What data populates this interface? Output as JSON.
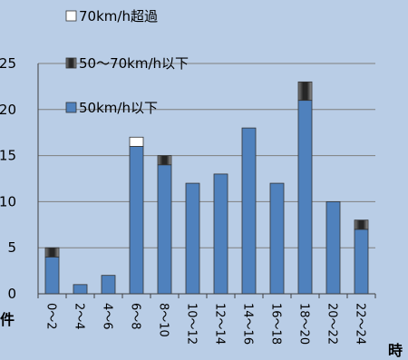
{
  "chart_data": {
    "type": "bar",
    "stacked": true,
    "categories": [
      "0〜2",
      "2〜4",
      "4〜6",
      "6〜8",
      "8〜10",
      "10〜12",
      "12〜14",
      "14〜16",
      "16〜18",
      "18〜20",
      "20〜22",
      "22〜24"
    ],
    "series": [
      {
        "name": "50km/h以下",
        "color": "#4f81bd",
        "values": [
          4,
          1,
          2,
          16,
          14,
          12,
          13,
          18,
          12,
          21,
          10,
          7
        ]
      },
      {
        "name": "50〜70km/h以下",
        "color": "#595959",
        "values": [
          1,
          0,
          0,
          0,
          1,
          0,
          0,
          0,
          0,
          2,
          0,
          1
        ]
      },
      {
        "name": "70km/h超過",
        "color": "#ffffff",
        "values": [
          0,
          0,
          0,
          1,
          0,
          0,
          0,
          0,
          0,
          0,
          0,
          0
        ]
      }
    ],
    "yticks": [
      0,
      5,
      10,
      15,
      20,
      25
    ],
    "ylim": [
      0,
      25
    ],
    "ylabel": "件",
    "xlabel": "時",
    "grid": true,
    "legend": "top-left"
  }
}
